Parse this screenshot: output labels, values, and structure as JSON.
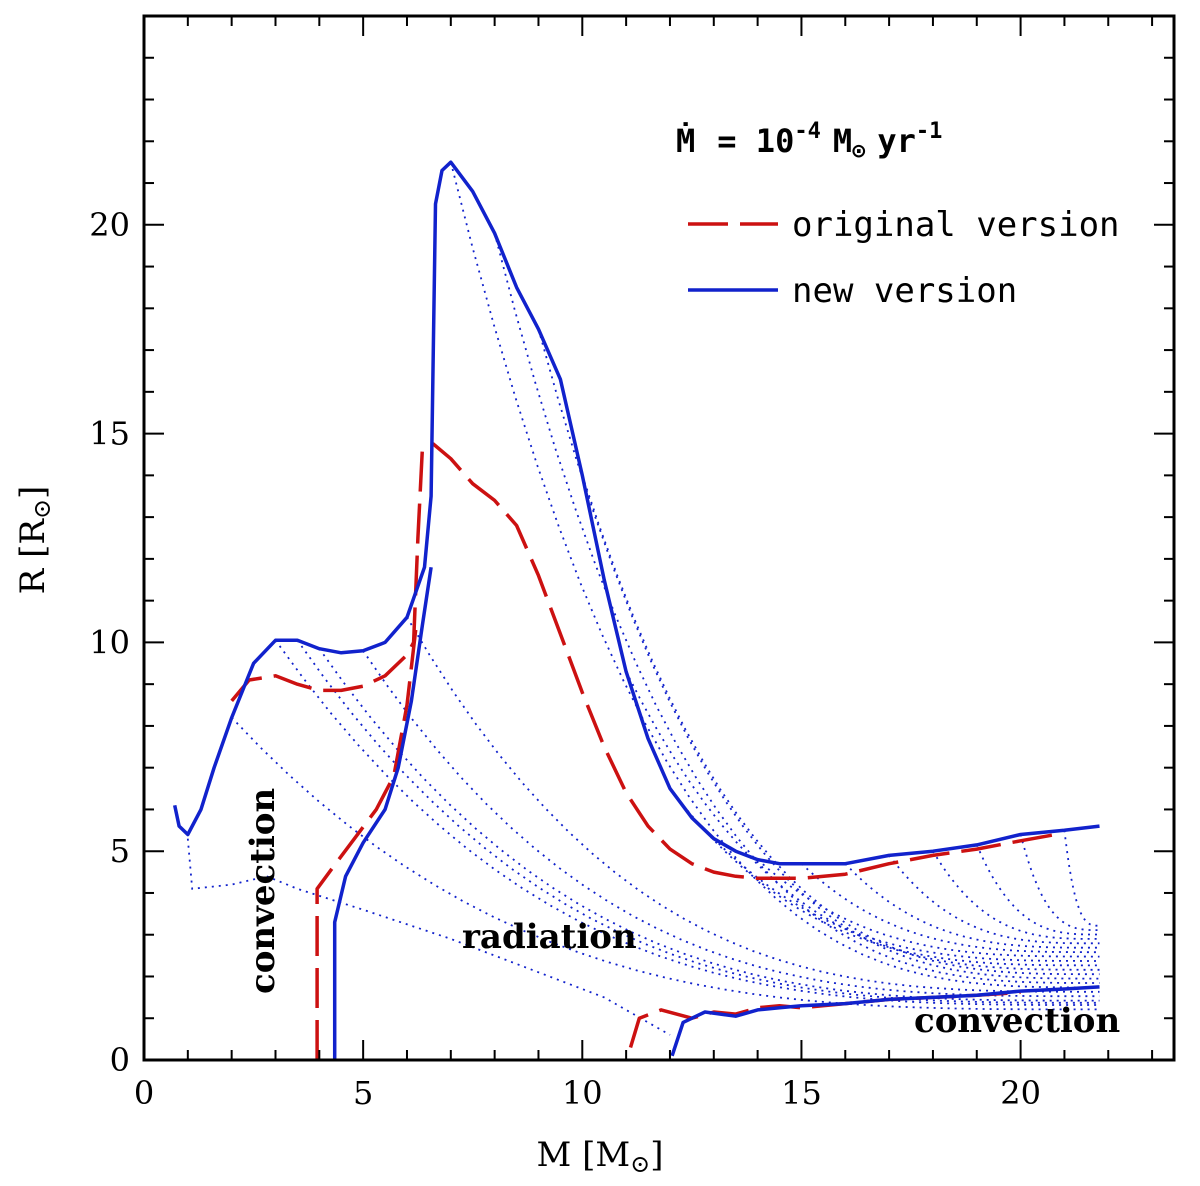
{
  "chart_data": {
    "type": "line",
    "xlabel": "M [M",
    "xlabel_sub": "⊙",
    "xlabel_close": "]",
    "ylabel": "R [R",
    "ylabel_sub": "⊙",
    "ylabel_close": "]",
    "xlim": [
      0,
      23.5
    ],
    "ylim": [
      0,
      25
    ],
    "xticks": [
      0,
      5,
      10,
      15,
      20
    ],
    "yticks": [
      0,
      5,
      10,
      15,
      20
    ],
    "x_tick_labels": [
      "0",
      "5",
      "10",
      "15",
      "20"
    ],
    "y_tick_labels": [
      "0",
      "5",
      "10",
      "15",
      "20"
    ],
    "legend_title": {
      "mdot": "Ṁ",
      "eq": "= 10",
      "exp": "-4",
      "unit": "M",
      "sun": "⊙",
      "yr": "yr",
      "yr_exp": "-1"
    },
    "legend_placement": "top-right",
    "series": [
      {
        "name": "original version",
        "color": "#cc1111",
        "style": "dashed",
        "segments": [
          [
            [
              2.0,
              8.6
            ],
            [
              2.4,
              9.1
            ],
            [
              3.0,
              9.2
            ],
            [
              3.5,
              9.0
            ],
            [
              4.0,
              8.85
            ],
            [
              4.5,
              8.85
            ],
            [
              5.0,
              8.95
            ],
            [
              5.5,
              9.2
            ],
            [
              6.0,
              9.7
            ],
            [
              6.15,
              10.0
            ],
            [
              6.25,
              12.5
            ],
            [
              6.35,
              14.6
            ],
            [
              6.6,
              14.75
            ],
            [
              7.0,
              14.4
            ],
            [
              7.5,
              13.8
            ],
            [
              8.0,
              13.4
            ],
            [
              8.5,
              12.8
            ],
            [
              9.0,
              11.6
            ],
            [
              9.5,
              10.2
            ],
            [
              10.0,
              8.8
            ],
            [
              10.5,
              7.5
            ],
            [
              11.0,
              6.4
            ],
            [
              11.5,
              5.6
            ],
            [
              12.0,
              5.05
            ],
            [
              12.5,
              4.7
            ],
            [
              13.0,
              4.5
            ],
            [
              13.5,
              4.4
            ],
            [
              14.0,
              4.35
            ],
            [
              15.0,
              4.35
            ],
            [
              16.0,
              4.45
            ],
            [
              17.0,
              4.7
            ],
            [
              18.0,
              4.9
            ],
            [
              19.0,
              5.05
            ],
            [
              20.0,
              5.25
            ],
            [
              20.8,
              5.4
            ]
          ],
          [
            [
              3.95,
              0.0
            ],
            [
              3.95,
              4.1
            ],
            [
              4.3,
              4.6
            ],
            [
              4.8,
              5.3
            ],
            [
              5.3,
              6.0
            ],
            [
              5.7,
              6.8
            ],
            [
              6.0,
              8.5
            ],
            [
              6.2,
              10.3
            ]
          ],
          [
            [
              11.1,
              0.3
            ],
            [
              11.3,
              1.0
            ],
            [
              11.8,
              1.2
            ],
            [
              12.5,
              1.0
            ],
            [
              13.0,
              1.15
            ],
            [
              13.5,
              1.1
            ],
            [
              14.0,
              1.25
            ],
            [
              14.5,
              1.3
            ],
            [
              15.0,
              1.25
            ],
            [
              16.0,
              1.35
            ],
            [
              17.0,
              1.45
            ],
            [
              18.0,
              1.5
            ],
            [
              19.0,
              1.55
            ],
            [
              20.0,
              1.62
            ]
          ]
        ]
      },
      {
        "name": "new version",
        "color": "#1122cc",
        "style": "solid",
        "segments": [
          [
            [
              0.7,
              6.1
            ],
            [
              0.8,
              5.6
            ],
            [
              1.0,
              5.4
            ],
            [
              1.3,
              6.0
            ],
            [
              1.6,
              7.0
            ],
            [
              2.0,
              8.2
            ],
            [
              2.5,
              9.5
            ],
            [
              3.0,
              10.05
            ],
            [
              3.5,
              10.05
            ],
            [
              4.0,
              9.85
            ],
            [
              4.5,
              9.75
            ],
            [
              5.0,
              9.8
            ],
            [
              5.5,
              10.0
            ],
            [
              6.0,
              10.6
            ],
            [
              6.4,
              11.8
            ],
            [
              6.55,
              13.5
            ],
            [
              6.65,
              20.5
            ],
            [
              6.8,
              21.3
            ],
            [
              7.0,
              21.5
            ],
            [
              7.5,
              20.8
            ],
            [
              8.0,
              19.8
            ],
            [
              8.5,
              18.5
            ],
            [
              9.0,
              17.5
            ],
            [
              9.5,
              16.3
            ],
            [
              10.0,
              14.0
            ],
            [
              10.5,
              11.5
            ],
            [
              11.0,
              9.3
            ],
            [
              11.5,
              7.7
            ],
            [
              12.0,
              6.5
            ],
            [
              12.5,
              5.8
            ],
            [
              13.0,
              5.3
            ],
            [
              13.5,
              5.0
            ],
            [
              14.0,
              4.8
            ],
            [
              14.5,
              4.7
            ],
            [
              15.0,
              4.7
            ],
            [
              16.0,
              4.7
            ],
            [
              17.0,
              4.9
            ],
            [
              18.0,
              5.0
            ],
            [
              19.0,
              5.15
            ],
            [
              20.0,
              5.4
            ],
            [
              21.0,
              5.5
            ],
            [
              21.8,
              5.6
            ]
          ],
          [
            [
              4.35,
              0.0
            ],
            [
              4.35,
              3.3
            ],
            [
              4.6,
              4.4
            ],
            [
              5.0,
              5.2
            ],
            [
              5.5,
              6.0
            ],
            [
              5.8,
              7.0
            ],
            [
              6.1,
              8.6
            ],
            [
              6.35,
              10.4
            ],
            [
              6.55,
              11.8
            ]
          ],
          [
            [
              12.05,
              0.1
            ],
            [
              12.3,
              0.9
            ],
            [
              12.8,
              1.15
            ],
            [
              13.5,
              1.05
            ],
            [
              14.0,
              1.2
            ],
            [
              14.5,
              1.25
            ],
            [
              15.0,
              1.3
            ],
            [
              16.0,
              1.35
            ],
            [
              17.0,
              1.45
            ],
            [
              18.0,
              1.5
            ],
            [
              19.0,
              1.55
            ],
            [
              20.0,
              1.65
            ],
            [
              21.0,
              1.7
            ],
            [
              21.8,
              1.75
            ]
          ]
        ]
      }
    ],
    "annotations": [
      "convection",
      "radiation",
      "convection"
    ]
  }
}
